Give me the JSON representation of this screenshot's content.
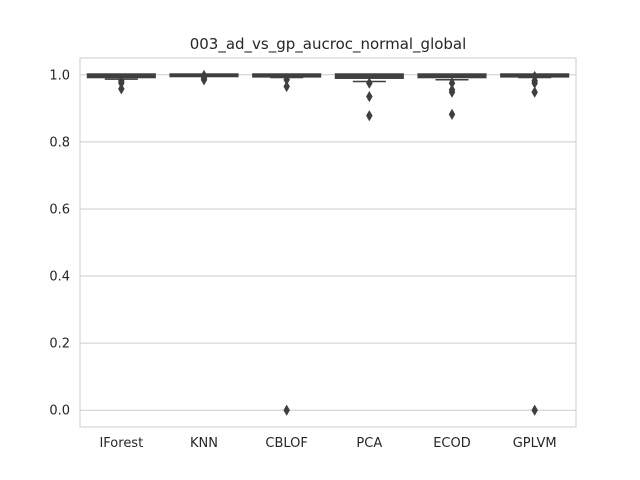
{
  "chart_data": {
    "type": "box",
    "title": "003_ad_vs_gp_aucroc_normal_global",
    "xlabel": "",
    "ylabel": "",
    "categories": [
      "IForest",
      "KNN",
      "CBLOF",
      "PCA",
      "ECOD",
      "GPLVM"
    ],
    "ylim": [
      -0.05,
      1.05
    ],
    "yticks": [
      0.0,
      0.2,
      0.4,
      0.6,
      0.8,
      1.0
    ],
    "ytick_labels": [
      "0.0",
      "0.2",
      "0.4",
      "0.6",
      "0.8",
      "1.0"
    ],
    "grid": "horizontal",
    "box_color": "#4c72b0",
    "line_color": "#3f3f3f",
    "boxes": [
      {
        "name": "IForest",
        "q1": 0.994,
        "median": 0.998,
        "q3": 1.0,
        "whisker_low": 0.987,
        "whisker_high": 1.0,
        "outliers": [
          0.981,
          0.975,
          0.958
        ]
      },
      {
        "name": "KNN",
        "q1": 0.998,
        "median": 0.9995,
        "q3": 1.0,
        "whisker_low": 0.996,
        "whisker_high": 1.0,
        "outliers": [
          0.998,
          0.99,
          0.985
        ]
      },
      {
        "name": "CBLOF",
        "q1": 0.996,
        "median": 0.999,
        "q3": 1.0,
        "whisker_low": 0.992,
        "whisker_high": 1.0,
        "outliers": [
          0.985,
          0.965,
          0.0
        ]
      },
      {
        "name": "PCA",
        "q1": 0.992,
        "median": 0.997,
        "q3": 1.0,
        "whisker_low": 0.98,
        "whisker_high": 1.0,
        "outliers": [
          0.975,
          0.935,
          0.878
        ]
      },
      {
        "name": "ECOD",
        "q1": 0.994,
        "median": 0.998,
        "q3": 1.0,
        "whisker_low": 0.985,
        "whisker_high": 1.0,
        "outliers": [
          0.975,
          0.955,
          0.948,
          0.882
        ]
      },
      {
        "name": "GPLVM",
        "q1": 0.996,
        "median": 0.999,
        "q3": 1.0,
        "whisker_low": 0.992,
        "whisker_high": 1.0,
        "outliers": [
          0.995,
          0.982,
          0.975,
          0.948,
          0.0
        ]
      }
    ]
  }
}
